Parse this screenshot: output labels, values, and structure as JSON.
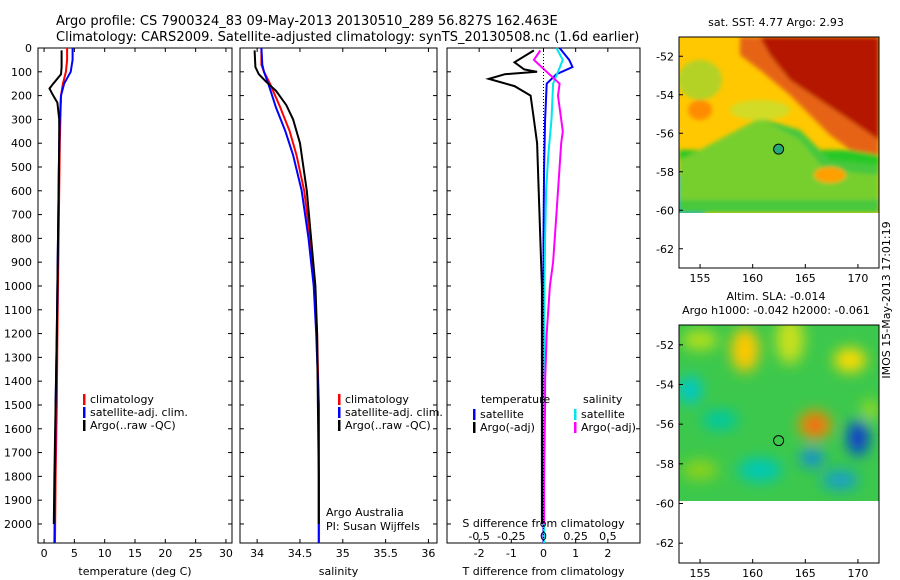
{
  "header": {
    "line1": "Argo profile: CS 7900324_83 09-May-2013 20130510_289 56.827S 162.463E",
    "line2": "Climatology: CARS2009. Satellite-adjusted climatology: synTS_20130508.nc (1.6d earlier)"
  },
  "colors": {
    "climatology": "#ff0000",
    "satellite": "#0000ff",
    "argo": "#000000",
    "sat_diff_s": "#00e5ee",
    "argo_diff_s": "#ff00ff"
  },
  "depth_ticks": [
    0,
    100,
    200,
    300,
    400,
    500,
    600,
    700,
    800,
    900,
    1000,
    1100,
    1200,
    1300,
    1400,
    1500,
    1600,
    1700,
    1800,
    1900,
    2000
  ],
  "side_note": "IMOS 15-May-2013 17:01:19",
  "credits": {
    "line1": "Argo Australia",
    "line2": "PI: Susan Wijffels"
  },
  "chart_data": [
    {
      "type": "line",
      "name": "temperature-profile",
      "xlabel": "temperature (deg C)",
      "ylabel": "",
      "xlim": [
        -1,
        31
      ],
      "ylim": [
        2080,
        0
      ],
      "x_ticks": [
        0,
        5,
        10,
        15,
        20,
        25,
        30
      ],
      "legend": [
        "climatology",
        "satellite-adj. clim.",
        "Argo(..raw -QC)"
      ],
      "series": [
        {
          "key": "climatology",
          "points": [
            [
              3.8,
              0
            ],
            [
              3.8,
              50
            ],
            [
              3.6,
              100
            ],
            [
              3.1,
              150
            ],
            [
              2.8,
              200
            ],
            [
              2.7,
              300
            ],
            [
              2.6,
              400
            ],
            [
              2.5,
              600
            ],
            [
              2.4,
              800
            ],
            [
              2.3,
              1000
            ],
            [
              2.2,
              1200
            ],
            [
              2.1,
              1500
            ],
            [
              1.9,
              1800
            ],
            [
              1.8,
              2080
            ]
          ]
        },
        {
          "key": "satellite",
          "points": [
            [
              4.7,
              0
            ],
            [
              4.7,
              50
            ],
            [
              4.4,
              100
            ],
            [
              3.3,
              150
            ],
            [
              2.8,
              200
            ],
            [
              2.6,
              300
            ],
            [
              2.5,
              400
            ],
            [
              2.4,
              600
            ],
            [
              2.3,
              800
            ],
            [
              2.2,
              1000
            ],
            [
              2.1,
              1200
            ],
            [
              1.9,
              1500
            ],
            [
              1.8,
              1800
            ],
            [
              1.7,
              2080
            ]
          ]
        },
        {
          "key": "argo",
          "points": [
            [
              2.9,
              10
            ],
            [
              2.9,
              80
            ],
            [
              2.8,
              110
            ],
            [
              1.5,
              150
            ],
            [
              0.9,
              170
            ],
            [
              1.3,
              190
            ],
            [
              2.2,
              230
            ],
            [
              2.5,
              300
            ],
            [
              2.5,
              400
            ],
            [
              2.4,
              600
            ],
            [
              2.3,
              800
            ],
            [
              2.2,
              1000
            ],
            [
              2.1,
              1200
            ],
            [
              1.9,
              1500
            ],
            [
              1.7,
              1800
            ],
            [
              1.6,
              2000
            ]
          ]
        }
      ]
    },
    {
      "type": "line",
      "name": "salinity-profile",
      "xlabel": "salinity",
      "ylabel": "",
      "xlim": [
        33.8,
        36.1
      ],
      "ylim": [
        2080,
        0
      ],
      "x_ticks": [
        34,
        34.5,
        35,
        35.5,
        36
      ],
      "legend": [
        "climatology",
        "satellite-adj. clim.",
        "Argo(..raw -QC)"
      ],
      "series": [
        {
          "key": "climatology",
          "points": [
            [
              34.05,
              0
            ],
            [
              34.05,
              70
            ],
            [
              34.08,
              100
            ],
            [
              34.15,
              150
            ],
            [
              34.27,
              250
            ],
            [
              34.38,
              350
            ],
            [
              34.46,
              450
            ],
            [
              34.55,
              600
            ],
            [
              34.62,
              800
            ],
            [
              34.67,
              1000
            ],
            [
              34.7,
              1200
            ],
            [
              34.72,
              1500
            ],
            [
              34.72,
              1800
            ],
            [
              34.72,
              2080
            ]
          ]
        },
        {
          "key": "satellite",
          "points": [
            [
              34.05,
              0
            ],
            [
              34.06,
              70
            ],
            [
              34.08,
              100
            ],
            [
              34.13,
              150
            ],
            [
              34.22,
              250
            ],
            [
              34.33,
              350
            ],
            [
              34.42,
              450
            ],
            [
              34.52,
              600
            ],
            [
              34.6,
              800
            ],
            [
              34.66,
              1000
            ],
            [
              34.69,
              1200
            ],
            [
              34.72,
              1500
            ],
            [
              34.72,
              1800
            ],
            [
              34.72,
              2080
            ]
          ]
        },
        {
          "key": "argo",
          "points": [
            [
              33.97,
              10
            ],
            [
              33.98,
              80
            ],
            [
              34.02,
              110
            ],
            [
              34.1,
              140
            ],
            [
              34.22,
              180
            ],
            [
              34.34,
              240
            ],
            [
              34.42,
              300
            ],
            [
              34.5,
              400
            ],
            [
              34.58,
              600
            ],
            [
              34.63,
              800
            ],
            [
              34.68,
              1000
            ],
            [
              34.7,
              1200
            ],
            [
              34.71,
              1500
            ],
            [
              34.72,
              1800
            ],
            [
              34.72,
              2000
            ]
          ]
        }
      ]
    },
    {
      "type": "line",
      "name": "difference-profile",
      "xlabel": "T difference from climatology",
      "x2label": "S difference from climatology",
      "ylabel": "",
      "xlim": [
        -3,
        3
      ],
      "ylim": [
        2080,
        0
      ],
      "x_ticks": [
        -2,
        -1,
        0,
        1,
        2
      ],
      "x2_ticks": [
        {
          "value": -0.5,
          "label": "-0.5"
        },
        {
          "value": -0.25,
          "label": "-0.25"
        },
        {
          "value": 0,
          "label": "0"
        },
        {
          "value": 0.25,
          "label": "0.25"
        },
        {
          "value": 0.5,
          "label": "0.5"
        }
      ],
      "legend_headings": [
        "temperature",
        "salinity"
      ],
      "legend": [
        "satellite",
        "Argo(-adj)",
        "satellite",
        "Argo(-adj)"
      ],
      "series": [
        {
          "key": "satellite",
          "points": [
            [
              0.5,
              0
            ],
            [
              0.8,
              50
            ],
            [
              0.9,
              80
            ],
            [
              0.4,
              110
            ],
            [
              0.1,
              150
            ],
            [
              0.05,
              300
            ],
            [
              0.02,
              500
            ],
            [
              0,
              800
            ],
            [
              0,
              1000
            ],
            [
              0,
              1500
            ],
            [
              0,
              2080
            ]
          ]
        },
        {
          "key": "argo",
          "points": [
            [
              -0.3,
              10
            ],
            [
              -0.9,
              60
            ],
            [
              -0.6,
              90
            ],
            [
              -0.2,
              100
            ],
            [
              -1.2,
              110
            ],
            [
              -1.7,
              130
            ],
            [
              -0.9,
              160
            ],
            [
              -0.4,
              200
            ],
            [
              -0.3,
              300
            ],
            [
              -0.2,
              400
            ],
            [
              -0.15,
              600
            ],
            [
              -0.1,
              800
            ],
            [
              -0.05,
              1000
            ],
            [
              -0.05,
              1500
            ],
            [
              -0.05,
              2000
            ]
          ]
        },
        {
          "key": "sat_diff_s",
          "points": [
            [
              0.4,
              0
            ],
            [
              0.6,
              50
            ],
            [
              0.45,
              100
            ],
            [
              0.3,
              150
            ],
            [
              0.25,
              300
            ],
            [
              0.15,
              450
            ],
            [
              0.08,
              600
            ],
            [
              0.05,
              800
            ],
            [
              0.03,
              1000
            ],
            [
              0.02,
              1500
            ],
            [
              0.02,
              2080
            ]
          ]
        },
        {
          "key": "argo_diff_s",
          "points": [
            [
              -0.1,
              10
            ],
            [
              -0.3,
              50
            ],
            [
              0.1,
              100
            ],
            [
              0.5,
              150
            ],
            [
              0.45,
              200
            ],
            [
              0.55,
              300
            ],
            [
              0.6,
              350
            ],
            [
              0.55,
              400
            ],
            [
              0.5,
              500
            ],
            [
              0.4,
              700
            ],
            [
              0.3,
              900
            ],
            [
              0.2,
              1000
            ],
            [
              0.1,
              1200
            ],
            [
              0.05,
              1400
            ],
            [
              0.05,
              1500
            ],
            [
              0.02,
              1800
            ],
            [
              0.02,
              2000
            ]
          ]
        }
      ]
    },
    {
      "type": "heatmap",
      "name": "sst-map",
      "title": "sat. SST: 4.77 Argo: 2.93",
      "xlim": [
        153,
        172
      ],
      "ylim": [
        -63,
        -51
      ],
      "x_ticks": [
        155,
        160,
        165,
        170
      ],
      "y_ticks": [
        -52,
        -54,
        -56,
        -58,
        -60,
        -62
      ],
      "float_position": [
        162.463,
        -56.827
      ],
      "data_extent_south": -60
    },
    {
      "type": "heatmap",
      "name": "sla-map",
      "title": "Altim. SLA: -0.014",
      "subtitle": "Argo h1000: -0.042 h2000: -0.061",
      "xlim": [
        153,
        172
      ],
      "ylim": [
        -63,
        -51
      ],
      "x_ticks": [
        155,
        160,
        165,
        170
      ],
      "y_ticks": [
        -52,
        -54,
        -56,
        -58,
        -60,
        -62
      ],
      "float_position": [
        162.463,
        -56.827
      ],
      "data_extent_south": -60
    }
  ]
}
